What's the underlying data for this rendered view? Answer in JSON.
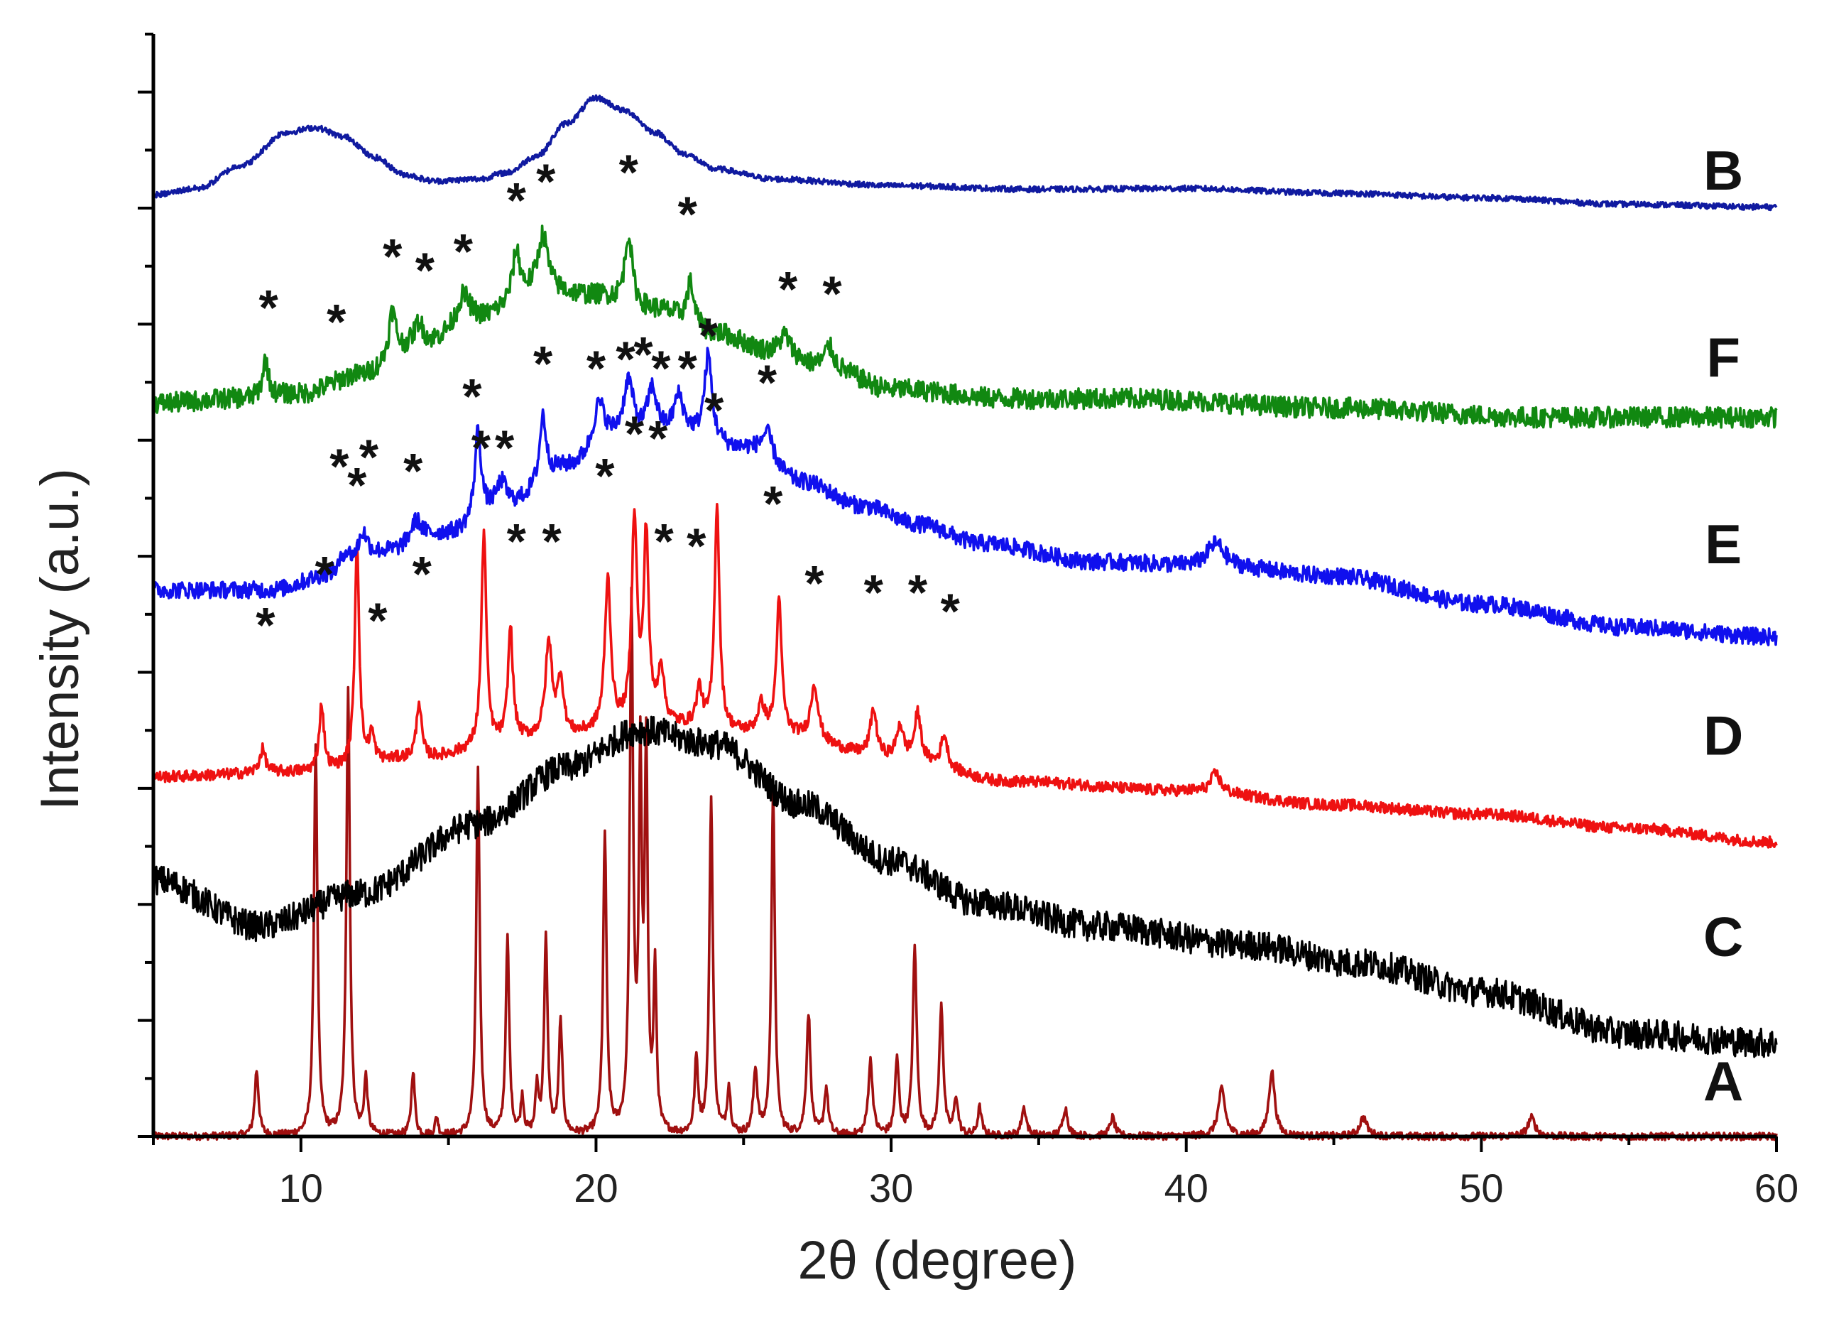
{
  "chart_data": {
    "type": "line",
    "xlabel": "2θ (degree)",
    "ylabel": "Intensity (a.u.)",
    "xlim": [
      5,
      60
    ],
    "x_ticks": [
      10,
      20,
      30,
      40,
      50,
      60
    ],
    "y_tick_count": 20,
    "peak_marker": "*",
    "series": [
      {
        "name": "A",
        "color": "#a01010",
        "kind": "crystalline",
        "baseline": 0.0,
        "noise": 0.004,
        "label_x": 58.2,
        "label_y": 0.06,
        "peaks": [
          [
            8.5,
            0.07,
            0.08
          ],
          [
            10.5,
            0.42,
            0.07
          ],
          [
            11.6,
            0.48,
            0.07
          ],
          [
            12.2,
            0.06,
            0.07
          ],
          [
            13.8,
            0.07,
            0.07
          ],
          [
            14.6,
            0.02,
            0.06
          ],
          [
            16.0,
            0.39,
            0.07
          ],
          [
            17.0,
            0.21,
            0.07
          ],
          [
            17.5,
            0.04,
            0.06
          ],
          [
            18.0,
            0.05,
            0.06
          ],
          [
            18.3,
            0.21,
            0.07
          ],
          [
            18.8,
            0.12,
            0.07
          ],
          [
            20.3,
            0.32,
            0.07
          ],
          [
            21.2,
            0.56,
            0.07
          ],
          [
            21.5,
            0.38,
            0.06
          ],
          [
            21.7,
            0.4,
            0.06
          ],
          [
            22.0,
            0.17,
            0.06
          ],
          [
            23.4,
            0.08,
            0.07
          ],
          [
            23.9,
            0.36,
            0.07
          ],
          [
            24.5,
            0.05,
            0.07
          ],
          [
            25.4,
            0.07,
            0.08
          ],
          [
            26.0,
            0.37,
            0.07
          ],
          [
            27.2,
            0.13,
            0.08
          ],
          [
            27.8,
            0.05,
            0.08
          ],
          [
            29.3,
            0.08,
            0.09
          ],
          [
            30.2,
            0.08,
            0.08
          ],
          [
            30.8,
            0.2,
            0.08
          ],
          [
            31.7,
            0.14,
            0.08
          ],
          [
            32.2,
            0.04,
            0.08
          ],
          [
            33.0,
            0.03,
            0.08
          ],
          [
            34.5,
            0.03,
            0.1
          ],
          [
            35.9,
            0.03,
            0.1
          ],
          [
            37.5,
            0.02,
            0.1
          ],
          [
            41.2,
            0.05,
            0.14
          ],
          [
            42.9,
            0.07,
            0.12
          ],
          [
            46.0,
            0.02,
            0.15
          ],
          [
            51.7,
            0.02,
            0.15
          ]
        ],
        "markers": []
      },
      {
        "name": "C",
        "color": "#000000",
        "kind": "amorphous",
        "baseline": 0.08,
        "noise": 0.016,
        "label_x": 58.2,
        "label_y": 0.215,
        "background": [
          [
            5,
            0.275
          ],
          [
            8.6,
            0.225
          ],
          [
            12,
            0.26
          ],
          [
            16,
            0.335
          ],
          [
            19,
            0.395
          ],
          [
            21.5,
            0.435
          ],
          [
            24,
            0.42
          ],
          [
            27,
            0.355
          ],
          [
            30,
            0.295
          ],
          [
            33,
            0.25
          ],
          [
            37,
            0.225
          ],
          [
            42,
            0.205
          ],
          [
            46,
            0.185
          ],
          [
            50,
            0.155
          ],
          [
            55,
            0.11
          ],
          [
            60,
            0.1
          ]
        ],
        "peaks": [],
        "markers": []
      },
      {
        "name": "D",
        "color": "#ee1111",
        "kind": "mixed",
        "noise": 0.006,
        "label_x": 58.2,
        "label_y": 0.43,
        "background": [
          [
            5,
            0.385
          ],
          [
            10,
            0.39
          ],
          [
            14,
            0.405
          ],
          [
            18,
            0.425
          ],
          [
            22,
            0.44
          ],
          [
            26,
            0.43
          ],
          [
            30,
            0.405
          ],
          [
            34,
            0.38
          ],
          [
            40,
            0.37
          ],
          [
            45,
            0.355
          ],
          [
            50,
            0.345
          ],
          [
            55,
            0.33
          ],
          [
            60,
            0.315
          ]
        ],
        "peaks": [
          [
            8.7,
            0.025,
            0.12
          ],
          [
            10.7,
            0.07,
            0.1
          ],
          [
            11.9,
            0.24,
            0.09
          ],
          [
            12.4,
            0.03,
            0.1
          ],
          [
            14.0,
            0.06,
            0.1
          ],
          [
            16.2,
            0.23,
            0.1
          ],
          [
            17.1,
            0.12,
            0.1
          ],
          [
            18.4,
            0.1,
            0.14
          ],
          [
            18.8,
            0.06,
            0.12
          ],
          [
            20.4,
            0.16,
            0.12
          ],
          [
            21.3,
            0.22,
            0.11
          ],
          [
            21.7,
            0.2,
            0.1
          ],
          [
            22.2,
            0.06,
            0.12
          ],
          [
            23.5,
            0.04,
            0.12
          ],
          [
            24.1,
            0.24,
            0.1
          ],
          [
            25.6,
            0.03,
            0.15
          ],
          [
            26.2,
            0.14,
            0.11
          ],
          [
            27.4,
            0.06,
            0.15
          ],
          [
            29.4,
            0.05,
            0.13
          ],
          [
            30.3,
            0.035,
            0.13
          ],
          [
            30.9,
            0.05,
            0.13
          ],
          [
            31.8,
            0.035,
            0.13
          ],
          [
            41.0,
            0.02,
            0.2
          ]
        ],
        "markers": [
          [
            8.8,
            0.555
          ],
          [
            10.8,
            0.61
          ],
          [
            11.9,
            0.705
          ],
          [
            12.6,
            0.56
          ],
          [
            14.1,
            0.61
          ],
          [
            16.1,
            0.745
          ],
          [
            17.3,
            0.645
          ],
          [
            18.5,
            0.645
          ],
          [
            20.3,
            0.715
          ],
          [
            21.3,
            0.76
          ],
          [
            22.1,
            0.755
          ],
          [
            22.3,
            0.645
          ],
          [
            23.4,
            0.64
          ],
          [
            24.0,
            0.785
          ],
          [
            26.0,
            0.685
          ],
          [
            27.4,
            0.6
          ],
          [
            29.4,
            0.59
          ],
          [
            30.9,
            0.59
          ],
          [
            32.0,
            0.57
          ]
        ]
      },
      {
        "name": "E",
        "color": "#1010ee",
        "kind": "mixed",
        "noise": 0.009,
        "label_x": 58.2,
        "label_y": 0.635,
        "background": [
          [
            5,
            0.585
          ],
          [
            9,
            0.585
          ],
          [
            11,
            0.6
          ],
          [
            13,
            0.625
          ],
          [
            15,
            0.645
          ],
          [
            17,
            0.675
          ],
          [
            19,
            0.715
          ],
          [
            21,
            0.745
          ],
          [
            23,
            0.75
          ],
          [
            25,
            0.735
          ],
          [
            27,
            0.7
          ],
          [
            29,
            0.675
          ],
          [
            31,
            0.655
          ],
          [
            33,
            0.635
          ],
          [
            37,
            0.615
          ],
          [
            41,
            0.61
          ],
          [
            45,
            0.6
          ],
          [
            50,
            0.57
          ],
          [
            55,
            0.545
          ],
          [
            60,
            0.535
          ]
        ],
        "peaks": [
          [
            11.5,
            0.02,
            0.2
          ],
          [
            12.1,
            0.03,
            0.2
          ],
          [
            13.9,
            0.025,
            0.25
          ],
          [
            16.0,
            0.095,
            0.13
          ],
          [
            16.8,
            0.025,
            0.2
          ],
          [
            18.2,
            0.07,
            0.13
          ],
          [
            20.1,
            0.05,
            0.25
          ],
          [
            21.1,
            0.06,
            0.2
          ],
          [
            21.9,
            0.05,
            0.2
          ],
          [
            22.8,
            0.04,
            0.2
          ],
          [
            23.8,
            0.09,
            0.15
          ],
          [
            25.8,
            0.03,
            0.25
          ],
          [
            41.0,
            0.025,
            0.35
          ]
        ],
        "markers": [
          [
            11.3,
            0.725
          ],
          [
            12.3,
            0.735
          ],
          [
            13.8,
            0.72
          ],
          [
            15.8,
            0.8
          ],
          [
            16.9,
            0.745
          ],
          [
            18.2,
            0.835
          ],
          [
            20.0,
            0.83
          ],
          [
            21.0,
            0.84
          ],
          [
            21.6,
            0.845
          ],
          [
            22.2,
            0.83
          ],
          [
            23.1,
            0.83
          ],
          [
            23.8,
            0.865
          ],
          [
            25.8,
            0.815
          ]
        ]
      },
      {
        "name": "F",
        "color": "#118811",
        "kind": "mixed",
        "noise": 0.011,
        "label_x": 58.2,
        "label_y": 0.835,
        "background": [
          [
            5,
            0.785
          ],
          [
            8,
            0.79
          ],
          [
            10,
            0.795
          ],
          [
            12,
            0.815
          ],
          [
            14,
            0.845
          ],
          [
            16,
            0.875
          ],
          [
            18,
            0.905
          ],
          [
            20,
            0.9
          ],
          [
            22,
            0.885
          ],
          [
            24,
            0.86
          ],
          [
            26,
            0.84
          ],
          [
            28,
            0.82
          ],
          [
            30,
            0.8
          ],
          [
            34,
            0.79
          ],
          [
            38,
            0.79
          ],
          [
            45,
            0.78
          ],
          [
            52,
            0.77
          ],
          [
            56,
            0.77
          ],
          [
            60,
            0.77
          ]
        ],
        "peaks": [
          [
            8.8,
            0.04,
            0.12
          ],
          [
            13.1,
            0.05,
            0.15
          ],
          [
            14.0,
            0.025,
            0.2
          ],
          [
            15.5,
            0.03,
            0.25
          ],
          [
            17.3,
            0.05,
            0.15
          ],
          [
            18.2,
            0.06,
            0.2
          ],
          [
            21.1,
            0.075,
            0.15
          ],
          [
            23.2,
            0.045,
            0.15
          ],
          [
            26.4,
            0.02,
            0.2
          ],
          [
            27.9,
            0.025,
            0.2
          ]
        ],
        "markers": [
          [
            8.9,
            0.895
          ],
          [
            11.2,
            0.88
          ],
          [
            13.1,
            0.95
          ],
          [
            14.2,
            0.935
          ],
          [
            15.5,
            0.955
          ],
          [
            17.3,
            1.01
          ],
          [
            18.3,
            1.03
          ],
          [
            21.1,
            1.04
          ],
          [
            23.1,
            0.995
          ],
          [
            26.5,
            0.915
          ],
          [
            28.0,
            0.91
          ]
        ]
      },
      {
        "name": "B",
        "color": "#101aa0",
        "kind": "amorphous",
        "noise": 0.003,
        "label_x": 58.2,
        "label_y": 1.035,
        "background": [
          [
            5,
            1.008
          ],
          [
            6.5,
            1.015
          ],
          [
            8,
            1.04
          ],
          [
            9.5,
            1.075
          ],
          [
            10.5,
            1.08
          ],
          [
            11.5,
            1.07
          ],
          [
            12.5,
            1.048
          ],
          [
            13.5,
            1.03
          ],
          [
            14.5,
            1.023
          ],
          [
            16,
            1.025
          ],
          [
            17,
            1.032
          ],
          [
            18,
            1.05
          ],
          [
            19,
            1.085
          ],
          [
            20,
            1.112
          ],
          [
            21,
            1.098
          ],
          [
            22,
            1.075
          ],
          [
            23,
            1.052
          ],
          [
            24,
            1.036
          ],
          [
            26,
            1.025
          ],
          [
            30,
            1.018
          ],
          [
            35,
            1.014
          ],
          [
            40,
            1.015
          ],
          [
            45,
            1.01
          ],
          [
            50,
            1.005
          ],
          [
            55,
            0.998
          ],
          [
            60,
            0.995
          ]
        ],
        "peaks": [],
        "markers": []
      }
    ]
  }
}
